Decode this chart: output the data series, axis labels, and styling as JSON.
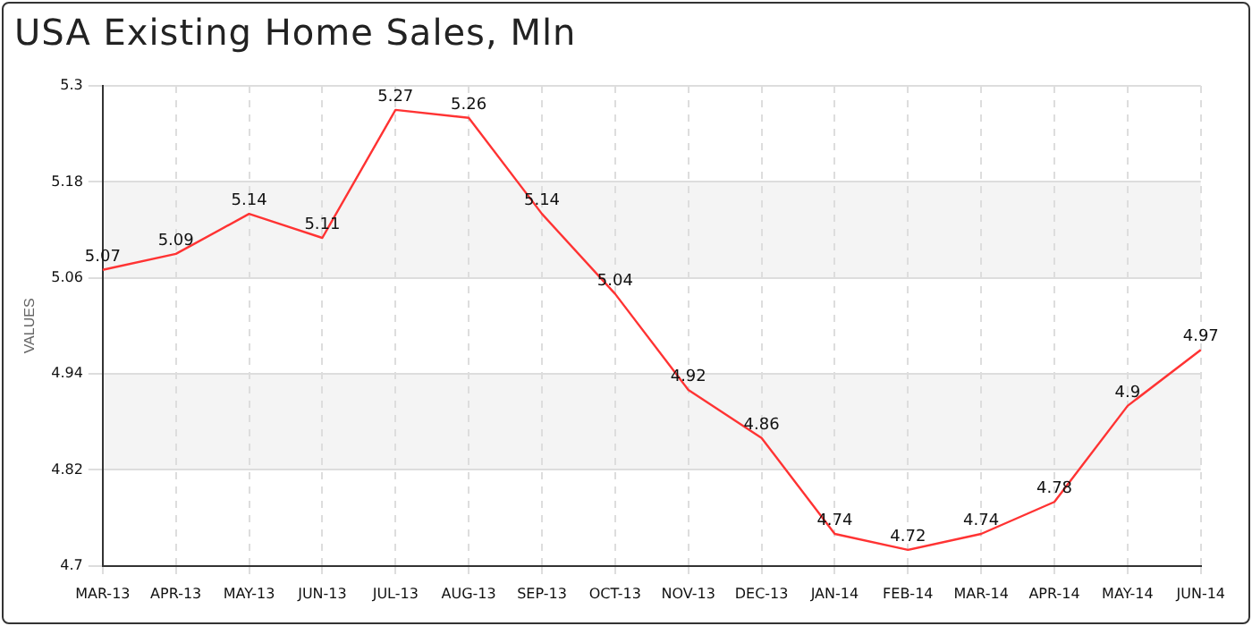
{
  "chart_data": {
    "type": "line",
    "title": "USA Existing Home Sales, Mln",
    "ylabel": "VALUES",
    "categories": [
      "MAR-13",
      "APR-13",
      "MAY-13",
      "JUN-13",
      "JUL-13",
      "AUG-13",
      "SEP-13",
      "OCT-13",
      "NOV-13",
      "DEC-13",
      "JAN-14",
      "FEB-14",
      "MAR-14",
      "APR-14",
      "MAY-14",
      "JUN-14"
    ],
    "series": [
      {
        "color": "#ff3333",
        "values": [
          5.07,
          5.09,
          5.14,
          5.11,
          5.27,
          5.26,
          5.14,
          5.04,
          4.92,
          4.86,
          4.74,
          4.72,
          4.74,
          4.78,
          4.9,
          4.97
        ]
      }
    ],
    "ylim": [
      4.7,
      5.3
    ],
    "yticks": [
      4.7,
      4.82,
      4.94,
      5.06,
      5.18,
      5.3
    ],
    "grid": true,
    "legend": false,
    "marker": "none",
    "line_style": "solid",
    "data_labels": true
  }
}
